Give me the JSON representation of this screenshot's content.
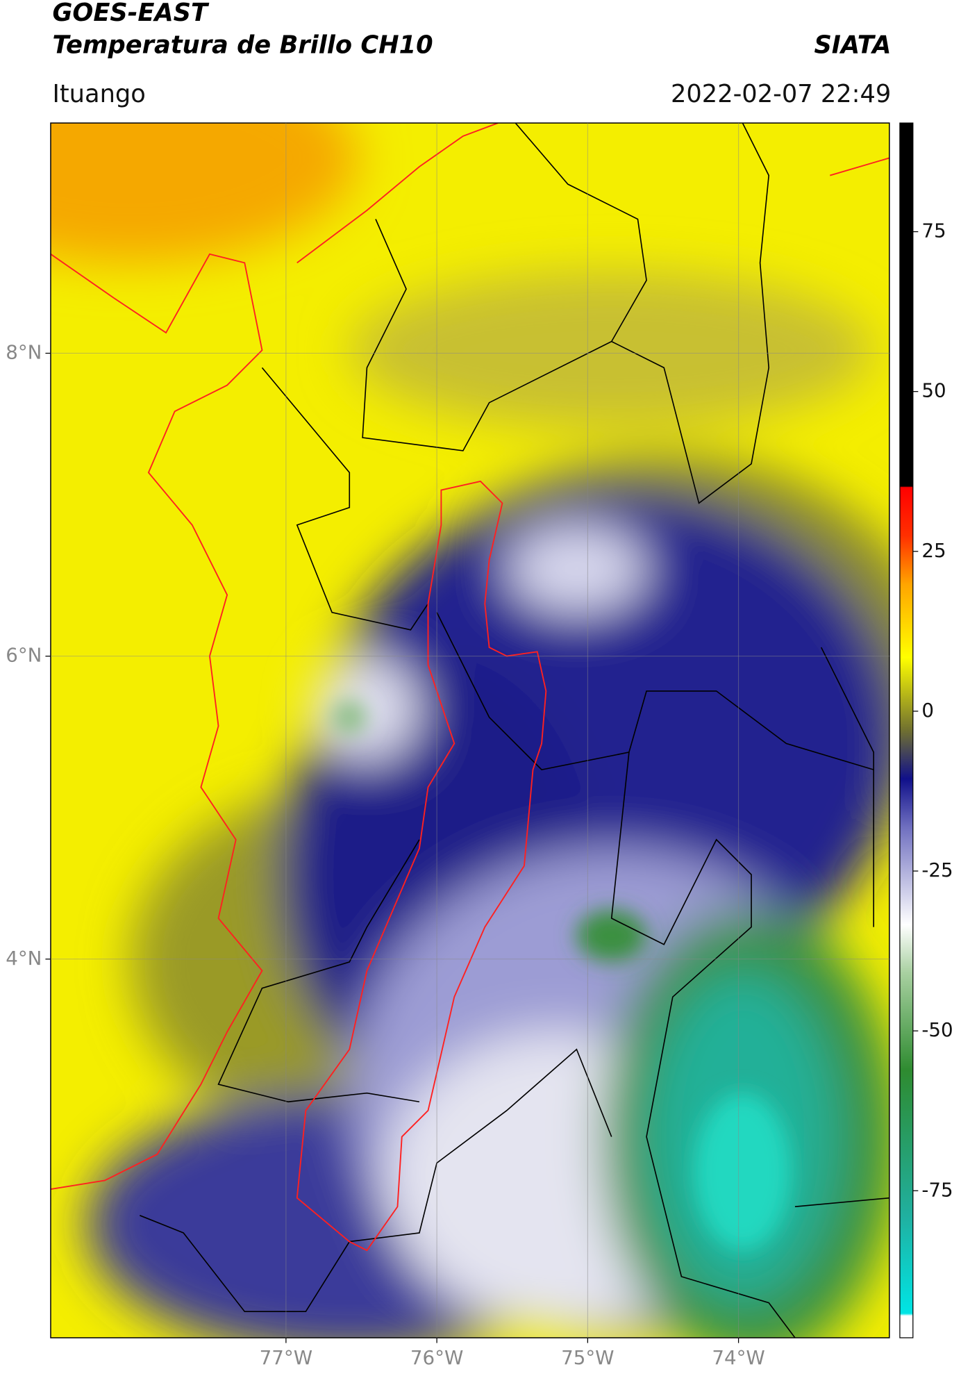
{
  "chart_data": {
    "type": "map",
    "title": "GOES-EAST",
    "subtitle": "Temperatura de Brillo CH10",
    "source": "SIATA",
    "region": "Ituango",
    "timestamp": "2022-02-07 22:49",
    "xlim": [
      -78.56,
      -73.0
    ],
    "ylim": [
      1.5,
      9.52
    ],
    "xticks": [
      {
        "value": -77,
        "label": "77°W"
      },
      {
        "value": -76,
        "label": "76°W"
      },
      {
        "value": -75,
        "label": "75°W"
      },
      {
        "value": -74,
        "label": "74°W"
      }
    ],
    "yticks": [
      {
        "value": 4,
        "label": "4°N"
      },
      {
        "value": 6,
        "label": "6°N"
      },
      {
        "value": 8,
        "label": "8°N"
      }
    ],
    "grid": true,
    "colorbar": {
      "lim": [
        -98,
        92
      ],
      "ticks": [
        -75,
        -50,
        -25,
        0,
        25,
        50,
        75
      ]
    }
  }
}
